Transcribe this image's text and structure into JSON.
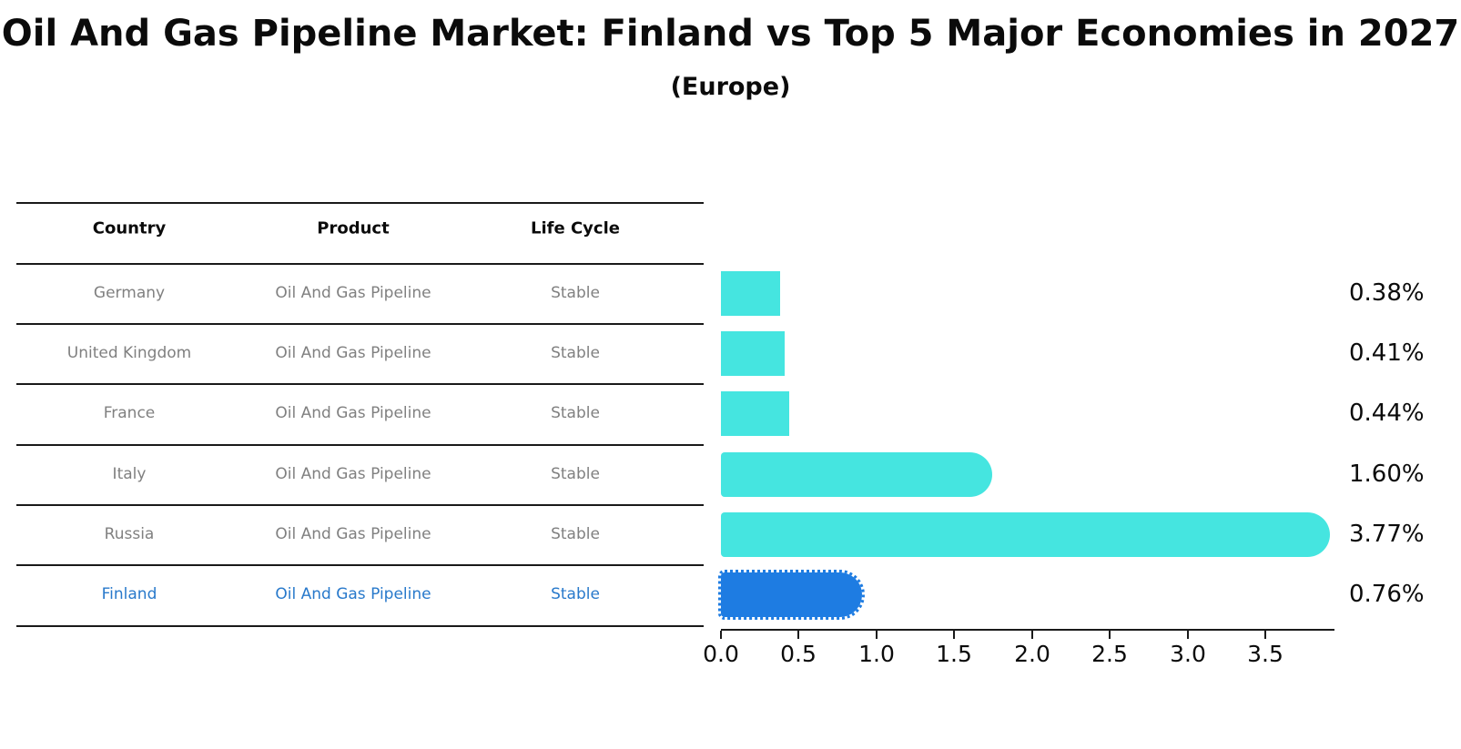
{
  "title": "Oil And Gas Pipeline Market: Finland vs Top 5 Major Economies in 2027",
  "subtitle": "(Europe)",
  "table": {
    "headers": [
      "Country",
      "Product",
      "Life Cycle"
    ],
    "rows": [
      {
        "country": "Germany",
        "product": "Oil And Gas Pipeline",
        "life_cycle": "Stable",
        "highlight": false
      },
      {
        "country": "United Kingdom",
        "product": "Oil And Gas Pipeline",
        "life_cycle": "Stable",
        "highlight": false
      },
      {
        "country": "France",
        "product": "Oil And Gas Pipeline",
        "life_cycle": "Stable",
        "highlight": false
      },
      {
        "country": "Italy",
        "product": "Oil And Gas Pipeline",
        "life_cycle": "Stable",
        "highlight": false
      },
      {
        "country": "Russia",
        "product": "Oil And Gas Pipeline",
        "life_cycle": "Stable",
        "highlight": false
      },
      {
        "country": "Finland",
        "product": "Oil And Gas Pipeline",
        "life_cycle": "Stable",
        "highlight": true
      }
    ]
  },
  "chart_data": {
    "type": "bar",
    "orientation": "horizontal",
    "categories": [
      "Germany",
      "United Kingdom",
      "France",
      "Italy",
      "Russia",
      "Finland"
    ],
    "values": [
      0.38,
      0.41,
      0.44,
      1.6,
      3.77,
      0.76
    ],
    "labels": [
      "0.38%",
      "0.41%",
      "0.44%",
      "1.60%",
      "3.77%",
      "0.76%"
    ],
    "x_ticks": [
      "0.0",
      "0.5",
      "1.0",
      "1.5",
      "2.0",
      "2.5",
      "3.0",
      "3.5"
    ],
    "xlim": [
      0,
      3.95
    ],
    "xlabel": "",
    "ylabel": "",
    "grid": false,
    "legend": "none",
    "bar_color": "#45E5E0",
    "highlight_color": "#1E7CE2",
    "highlight_index": 5,
    "highlight_style": "dotted-border"
  }
}
